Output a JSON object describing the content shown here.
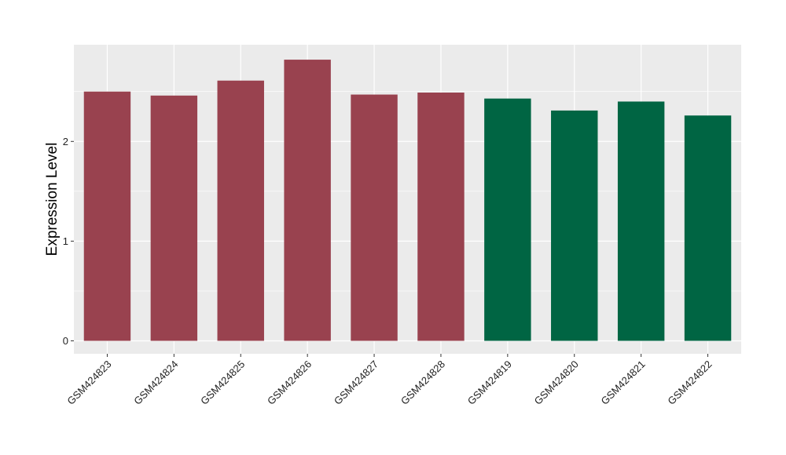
{
  "chart_data": {
    "type": "bar",
    "categories": [
      "GSM424823",
      "GSM424824",
      "GSM424825",
      "GSM424826",
      "GSM424827",
      "GSM424828",
      "GSM424819",
      "GSM424820",
      "GSM424821",
      "GSM424822"
    ],
    "values": [
      2.5,
      2.46,
      2.61,
      2.82,
      2.47,
      2.49,
      2.43,
      2.31,
      2.4,
      2.26
    ],
    "bar_colors": [
      "#99424f",
      "#99424f",
      "#99424f",
      "#99424f",
      "#99424f",
      "#99424f",
      "#006543",
      "#006543",
      "#006543",
      "#006543"
    ],
    "title": "",
    "xlabel": "",
    "ylabel": "Expression Level",
    "ylim": [
      -0.13,
      2.97
    ],
    "yticks": [
      0,
      1,
      2
    ],
    "grid": true,
    "panel_background": "#ebebeb",
    "gridline_color": "#ffffff"
  }
}
